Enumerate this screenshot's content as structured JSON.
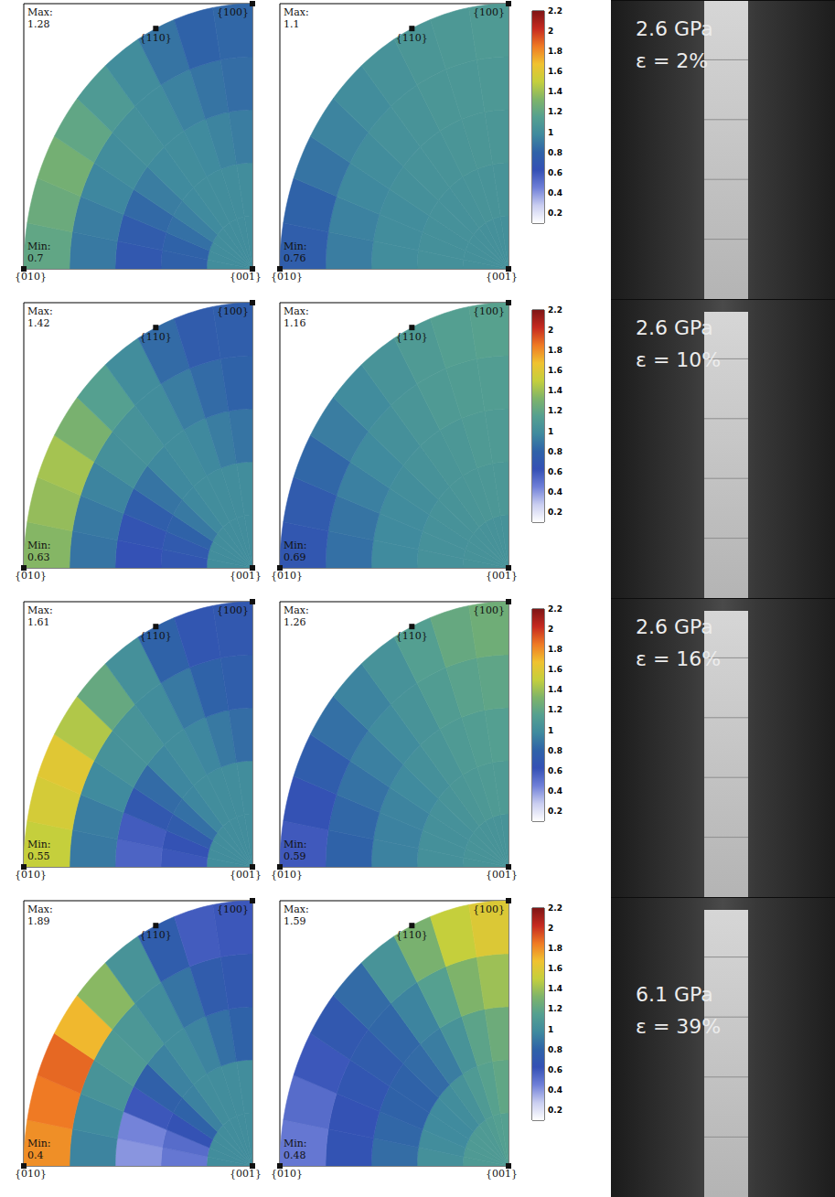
{
  "chart_data": {
    "type": "heatmap",
    "labels": {
      "max": "Max:",
      "min": "Min:",
      "bottom_left": "{010}",
      "bottom_right": "{001}",
      "top_right": "{100}",
      "arc": "{110}"
    },
    "radius_bins": [
      0,
      0.2,
      0.4,
      0.6,
      0.8,
      1
    ],
    "angle_bins": [
      0,
      10,
      20,
      30,
      40,
      50,
      60,
      70,
      80,
      90
    ],
    "colorbar": {
      "range": [
        0.1,
        2.2
      ],
      "ticks": [
        0.2,
        0.4,
        0.6,
        0.8,
        1,
        1.2,
        1.4,
        1.6,
        1.8,
        2,
        2.2
      ]
    },
    "rows": [
      {
        "texts": [
          "2.6 GPa",
          "ε = 2%"
        ],
        "panels": [
          {
            "max": 1.28,
            "min": 0.7,
            "cells": [
              [
                1.0,
                1.0,
                1.0,
                1.0,
                1.0,
                1.0,
                1.0,
                1.0,
                1.0
              ],
              [
                0.78,
                0.8,
                0.86,
                0.93,
                0.98,
                1.0,
                1.0,
                1.0,
                1.0
              ],
              [
                0.7,
                0.74,
                0.83,
                0.92,
                0.98,
                1.0,
                0.98,
                0.95,
                0.92
              ],
              [
                0.9,
                0.92,
                0.96,
                1.0,
                1.02,
                1.0,
                0.94,
                0.88,
                0.85
              ],
              [
                1.2,
                1.24,
                1.28,
                1.2,
                1.1,
                1.0,
                0.88,
                0.8,
                0.82
              ]
            ]
          },
          {
            "max": 1.1,
            "min": 0.76,
            "cells": [
              [
                1.02,
                1.02,
                1.02,
                1.02,
                1.02,
                1.02,
                1.02,
                1.02,
                1.02
              ],
              [
                1.02,
                1.02,
                1.02,
                1.03,
                1.03,
                1.04,
                1.05,
                1.05,
                1.05
              ],
              [
                1.0,
                1.0,
                1.0,
                1.02,
                1.04,
                1.05,
                1.06,
                1.07,
                1.07
              ],
              [
                0.92,
                0.94,
                0.97,
                1.0,
                1.03,
                1.05,
                1.07,
                1.08,
                1.09
              ],
              [
                0.76,
                0.8,
                0.88,
                0.95,
                1.0,
                1.04,
                1.07,
                1.09,
                1.1
              ]
            ]
          }
        ]
      },
      {
        "texts": [
          "2.6 GPa",
          "ε = 10%"
        ],
        "panels": [
          {
            "max": 1.42,
            "min": 0.63,
            "cells": [
              [
                1.0,
                1.0,
                1.0,
                1.0,
                1.0,
                1.0,
                1.0,
                1.0,
                1.0
              ],
              [
                0.68,
                0.72,
                0.8,
                0.9,
                0.97,
                1.0,
                1.0,
                1.0,
                1.0
              ],
              [
                0.63,
                0.66,
                0.76,
                0.88,
                0.97,
                1.0,
                0.97,
                0.92,
                0.88
              ],
              [
                0.88,
                0.9,
                0.95,
                1.02,
                1.04,
                1.0,
                0.92,
                0.84,
                0.8
              ],
              [
                1.34,
                1.38,
                1.42,
                1.3,
                1.15,
                1.0,
                0.84,
                0.74,
                0.76
              ]
            ]
          },
          {
            "max": 1.16,
            "min": 0.69,
            "cells": [
              [
                1.04,
                1.04,
                1.04,
                1.04,
                1.04,
                1.04,
                1.04,
                1.04,
                1.04
              ],
              [
                1.03,
                1.03,
                1.03,
                1.04,
                1.05,
                1.06,
                1.07,
                1.08,
                1.08
              ],
              [
                0.98,
                0.98,
                0.99,
                1.01,
                1.04,
                1.06,
                1.08,
                1.1,
                1.1
              ],
              [
                0.86,
                0.88,
                0.93,
                0.98,
                1.02,
                1.06,
                1.1,
                1.12,
                1.13
              ],
              [
                0.69,
                0.73,
                0.82,
                0.92,
                0.99,
                1.05,
                1.1,
                1.14,
                1.16
              ]
            ]
          }
        ]
      },
      {
        "texts": [
          "2.6 GPa",
          "ε = 16%"
        ],
        "panels": [
          {
            "max": 1.61,
            "min": 0.55,
            "cells": [
              [
                1.0,
                1.0,
                1.0,
                1.0,
                1.0,
                1.0,
                1.0,
                1.0,
                1.0
              ],
              [
                0.6,
                0.64,
                0.74,
                0.86,
                0.96,
                1.0,
                1.0,
                1.0,
                1.0
              ],
              [
                0.55,
                0.58,
                0.7,
                0.84,
                0.96,
                1.0,
                0.96,
                0.9,
                0.85
              ],
              [
                0.9,
                0.92,
                0.98,
                1.04,
                1.05,
                1.0,
                0.9,
                0.8,
                0.76
              ],
              [
                1.5,
                1.56,
                1.61,
                1.45,
                1.22,
                1.02,
                0.8,
                0.68,
                0.7
              ]
            ]
          },
          {
            "max": 1.26,
            "min": 0.59,
            "cells": [
              [
                1.05,
                1.05,
                1.05,
                1.05,
                1.05,
                1.05,
                1.05,
                1.05,
                1.05
              ],
              [
                1.02,
                1.02,
                1.02,
                1.03,
                1.05,
                1.07,
                1.09,
                1.1,
                1.1
              ],
              [
                0.94,
                0.94,
                0.95,
                0.98,
                1.02,
                1.06,
                1.1,
                1.13,
                1.14
              ],
              [
                0.8,
                0.82,
                0.87,
                0.93,
                0.99,
                1.05,
                1.12,
                1.17,
                1.19
              ],
              [
                0.59,
                0.64,
                0.75,
                0.86,
                0.95,
                1.04,
                1.14,
                1.22,
                1.26
              ]
            ]
          }
        ]
      },
      {
        "texts": [
          "6.1 GPa",
          "ε = 39%"
        ],
        "panels": [
          {
            "max": 1.89,
            "min": 0.4,
            "cells": [
              [
                1.0,
                1.0,
                1.0,
                1.0,
                1.0,
                1.0,
                1.0,
                1.0,
                1.0
              ],
              [
                0.48,
                0.52,
                0.64,
                0.8,
                0.94,
                1.0,
                1.0,
                1.0,
                1.0
              ],
              [
                0.4,
                0.44,
                0.6,
                0.78,
                0.94,
                1.0,
                0.95,
                0.86,
                0.8
              ],
              [
                0.95,
                0.98,
                1.05,
                1.1,
                1.08,
                1.0,
                0.88,
                0.74,
                0.7
              ],
              [
                1.8,
                1.85,
                1.89,
                1.7,
                1.35,
                1.05,
                0.75,
                0.58,
                0.6
              ]
            ]
          },
          {
            "max": 1.59,
            "min": 0.48,
            "cells": [
              [
                1.1,
                1.1,
                1.1,
                1.1,
                1.1,
                1.1,
                1.12,
                1.14,
                1.15
              ],
              [
                1.02,
                1.0,
                0.98,
                0.98,
                1.0,
                1.04,
                1.1,
                1.16,
                1.2
              ],
              [
                0.85,
                0.82,
                0.8,
                0.8,
                0.84,
                0.92,
                1.05,
                1.18,
                1.25
              ],
              [
                0.65,
                0.64,
                0.68,
                0.74,
                0.82,
                0.95,
                1.15,
                1.32,
                1.4
              ],
              [
                0.48,
                0.52,
                0.6,
                0.7,
                0.84,
                1.05,
                1.3,
                1.5,
                1.59
              ]
            ]
          }
        ]
      }
    ]
  }
}
